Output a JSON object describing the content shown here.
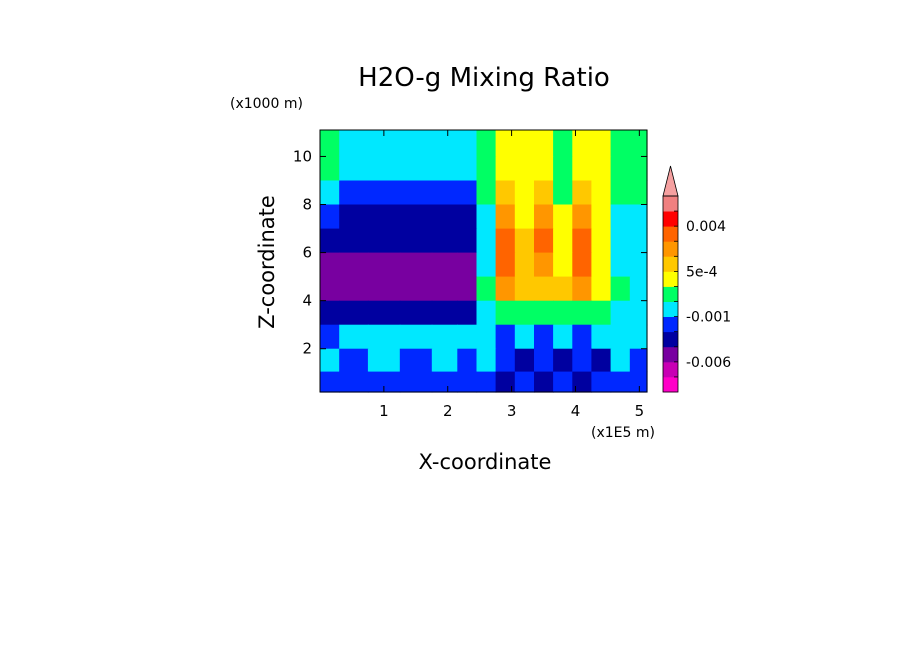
{
  "chart_data": {
    "type": "heatmap",
    "title": "H2O-g Mixing Ratio",
    "xlabel": "X-coordinate",
    "ylabel": "Z-coordinate",
    "x_unit_label": "(x1E5 m)",
    "y_unit_label": "(x1000 m)",
    "xlim": [
      0,
      5.12
    ],
    "ylim": [
      0.2,
      11.1
    ],
    "x_ticks": [
      1,
      2,
      3,
      4,
      5
    ],
    "y_ticks": [
      2,
      4,
      6,
      8,
      10
    ],
    "colorbar": {
      "labels": [
        {
          "text": "0.004",
          "value": 0.004
        },
        {
          "text": "5e-4",
          "value": 0.0005
        },
        {
          "text": "-0.001",
          "value": -0.001
        },
        {
          "text": "-0.006",
          "value": -0.006
        }
      ],
      "bands": [
        {
          "lo": -0.01,
          "hi": -0.008,
          "color": "#ff00c8"
        },
        {
          "lo": -0.008,
          "hi": -0.006,
          "color": "#c800b4"
        },
        {
          "lo": -0.006,
          "hi": -0.004,
          "color": "#7800a0"
        },
        {
          "lo": -0.004,
          "hi": -0.002,
          "color": "#0000a0"
        },
        {
          "lo": -0.002,
          "hi": -0.001,
          "color": "#0028ff"
        },
        {
          "lo": -0.001,
          "hi": -0.0005,
          "color": "#00e8ff"
        },
        {
          "lo": -0.0005,
          "hi": 0.0,
          "color": "#00ff64"
        },
        {
          "lo": 0.0,
          "hi": 0.0005,
          "color": "#ffff00"
        },
        {
          "lo": 0.0005,
          "hi": 0.001,
          "color": "#ffc800"
        },
        {
          "lo": 0.001,
          "hi": 0.002,
          "color": "#ff9600"
        },
        {
          "lo": 0.002,
          "hi": 0.004,
          "color": "#ff6400"
        },
        {
          "lo": 0.004,
          "hi": 0.006,
          "color": "#ff0000"
        },
        {
          "lo": 0.006,
          "hi": 0.008,
          "color": "#f08080"
        }
      ],
      "extend_max_color": "#f5a0a0"
    },
    "field_grid": {
      "x": [
        0.1,
        0.5,
        1.0,
        1.5,
        2.0,
        2.3,
        2.6,
        2.9,
        3.2,
        3.5,
        3.8,
        4.1,
        4.4,
        4.7,
        5.0
      ],
      "z": [
        10.5,
        9.5,
        8.5,
        7.5,
        6.5,
        5.5,
        4.5,
        3.5,
        2.5,
        1.5,
        0.6
      ],
      "values": [
        [
          -0.0003,
          -0.0007,
          -0.0007,
          -0.0007,
          -0.0007,
          -0.0006,
          -0.0002,
          0.0003,
          0.0002,
          0.0003,
          -0.0002,
          0.0003,
          0.0002,
          -0.0003,
          -0.0004
        ],
        [
          -0.0004,
          -0.0008,
          -0.0009,
          -0.0009,
          -0.0009,
          -0.0008,
          -0.0003,
          0.0004,
          0.0002,
          0.0004,
          -0.0002,
          0.0004,
          0.0002,
          -0.0003,
          -0.0004
        ],
        [
          -0.0006,
          -0.0015,
          -0.0015,
          -0.0015,
          -0.0015,
          -0.0013,
          -0.0004,
          0.0006,
          0.0003,
          0.0006,
          -0.0001,
          0.0005,
          0.0002,
          -0.0004,
          -0.0005
        ],
        [
          -0.0015,
          -0.003,
          -0.003,
          -0.003,
          -0.003,
          -0.0028,
          -0.0006,
          0.0012,
          0.0004,
          0.0015,
          0.0001,
          0.0012,
          0.0002,
          -0.0006,
          -0.0007
        ],
        [
          -0.0025,
          -0.003,
          -0.003,
          -0.003,
          -0.003,
          -0.0028,
          -0.0008,
          0.0022,
          0.0005,
          0.0022,
          0.0002,
          0.0025,
          0.0003,
          -0.0007,
          -0.0008
        ],
        [
          -0.005,
          -0.005,
          -0.005,
          -0.005,
          -0.005,
          -0.0045,
          -0.0009,
          0.0022,
          0.0006,
          0.0018,
          0.0004,
          0.0022,
          0.0004,
          -0.0006,
          -0.0008
        ],
        [
          -0.005,
          -0.005,
          -0.005,
          -0.005,
          -0.005,
          -0.0045,
          -0.0005,
          0.0012,
          0.0006,
          0.0009,
          0.0006,
          0.0014,
          0.0003,
          -0.0004,
          -0.0006
        ],
        [
          -0.003,
          -0.003,
          -0.003,
          -0.003,
          -0.003,
          -0.003,
          -0.0008,
          -0.0002,
          -0.0004,
          -0.0003,
          -0.0003,
          -0.0002,
          -0.0003,
          -0.0006,
          -0.0008
        ],
        [
          -0.0012,
          -0.0009,
          -0.0009,
          -0.0009,
          -0.0009,
          -0.0009,
          -0.0009,
          -0.0015,
          -0.0008,
          -0.0015,
          -0.0008,
          -0.0015,
          -0.0008,
          -0.0008,
          -0.0009
        ],
        [
          -0.0008,
          -0.0015,
          -0.0008,
          -0.0015,
          -0.0008,
          -0.0015,
          -0.0009,
          -0.0015,
          -0.0025,
          -0.0015,
          -0.0025,
          -0.0015,
          -0.0025,
          -0.0008,
          -0.0012
        ],
        [
          -0.0015,
          -0.0015,
          -0.0015,
          -0.0015,
          -0.0015,
          -0.0015,
          -0.0015,
          -0.0025,
          -0.0015,
          -0.0025,
          -0.0015,
          -0.0025,
          -0.0015,
          -0.0012,
          -0.0012
        ]
      ]
    },
    "grid": false
  }
}
